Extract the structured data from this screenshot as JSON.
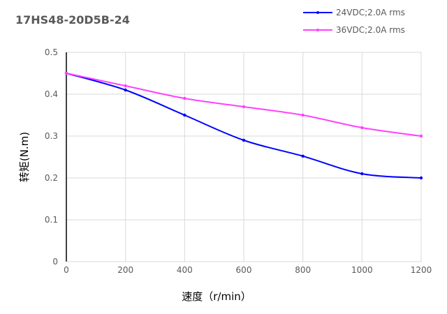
{
  "chart_data": {
    "type": "line",
    "title": "17HS48-20D5B-24",
    "xlabel": "速度（r/min）",
    "ylabel": "转矩(N.m)",
    "x": [
      0,
      200,
      400,
      600,
      800,
      1000,
      1200
    ],
    "xlim": [
      0,
      1200
    ],
    "ylim": [
      0,
      0.5
    ],
    "xticks": [
      "0",
      "200",
      "400",
      "600",
      "800",
      "1000",
      "1200"
    ],
    "yticks": [
      "0",
      "0.1",
      "0.2",
      "0.3",
      "0.4",
      "0.5"
    ],
    "grid": true,
    "smooth": true,
    "legend_position": "top-right",
    "series": [
      {
        "name": "24VDC;2.0A rms",
        "color": "#0000ff",
        "values": [
          0.45,
          0.41,
          0.35,
          0.29,
          0.252,
          0.21,
          0.2
        ]
      },
      {
        "name": "36VDC;2.0A rms",
        "color": "#ff40ff",
        "values": [
          0.45,
          0.42,
          0.39,
          0.37,
          0.35,
          0.32,
          0.3
        ]
      }
    ]
  }
}
